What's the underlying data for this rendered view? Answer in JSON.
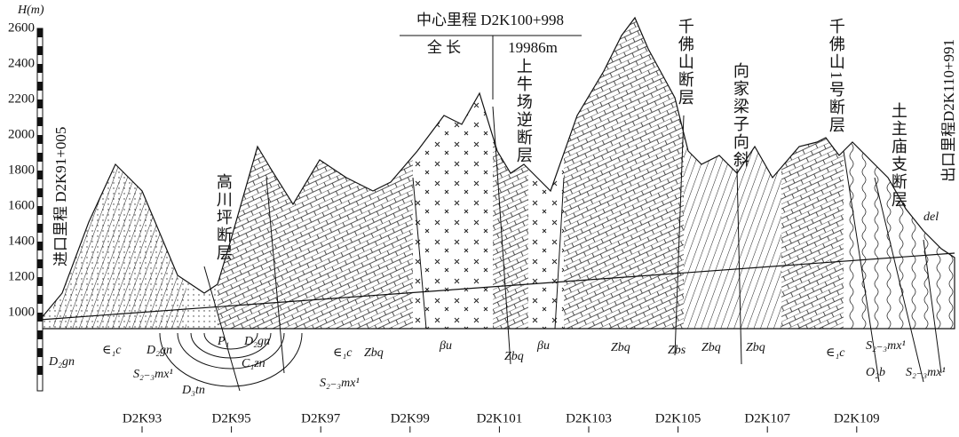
{
  "axis": {
    "label": "H(m)",
    "ticks": [
      "2600",
      "2400",
      "2200",
      "2000",
      "1800",
      "1600",
      "1400",
      "1200",
      "1000"
    ]
  },
  "mileage": [
    "D2K93",
    "D2K95",
    "D2K97",
    "D2K99",
    "D2K101",
    "D2K103",
    "D2K105",
    "D2K107",
    "D2K109"
  ],
  "center_box": {
    "title": "中心里程  D2K100+998",
    "length_label": "全  长",
    "length": "19986m"
  },
  "endpoints": {
    "entrance": "进口里程 D2K91+005",
    "exit": "出口里程D2K110+991"
  },
  "faults": [
    "高川坪断层",
    "上牛场逆断层",
    "千佛山断层",
    "向家梁子向斜",
    "千佛山1号断层",
    "土主庙支断层"
  ],
  "strata": [
    "D₂gn",
    "∈₁c",
    "D₂gn",
    "S₂₋₃mx¹",
    "P₁",
    "D₂gn",
    "C₁zn",
    "D₃tn",
    "S₂₋₃mx¹",
    "∈₁c",
    "Zbq",
    "βu",
    "Zbq",
    "βu",
    "Zbq",
    "Zbs",
    "Zbq",
    "Zbq",
    "∈₁c",
    "S₂₋₃mx¹",
    "O₂b",
    "S₂₋₃mx¹",
    "del"
  ]
}
